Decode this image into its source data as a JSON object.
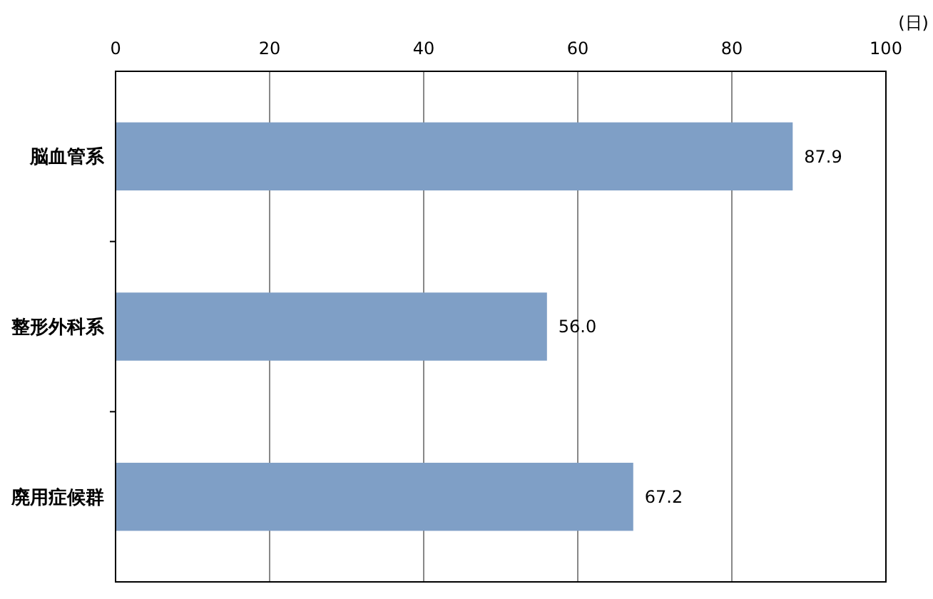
{
  "chart_data": {
    "type": "bar",
    "orientation": "horizontal",
    "xlabel": "(日)",
    "categories": [
      "脳血管系",
      "整形外科系",
      "廃用症候群"
    ],
    "values": [
      87.9,
      56.0,
      67.2
    ],
    "value_labels": [
      "87.9",
      "56.0",
      "67.2"
    ],
    "color": "#7f9fc6",
    "xlim": [
      0,
      100
    ],
    "xticks": [
      0,
      20,
      40,
      60,
      80,
      100
    ],
    "grid": "x"
  }
}
